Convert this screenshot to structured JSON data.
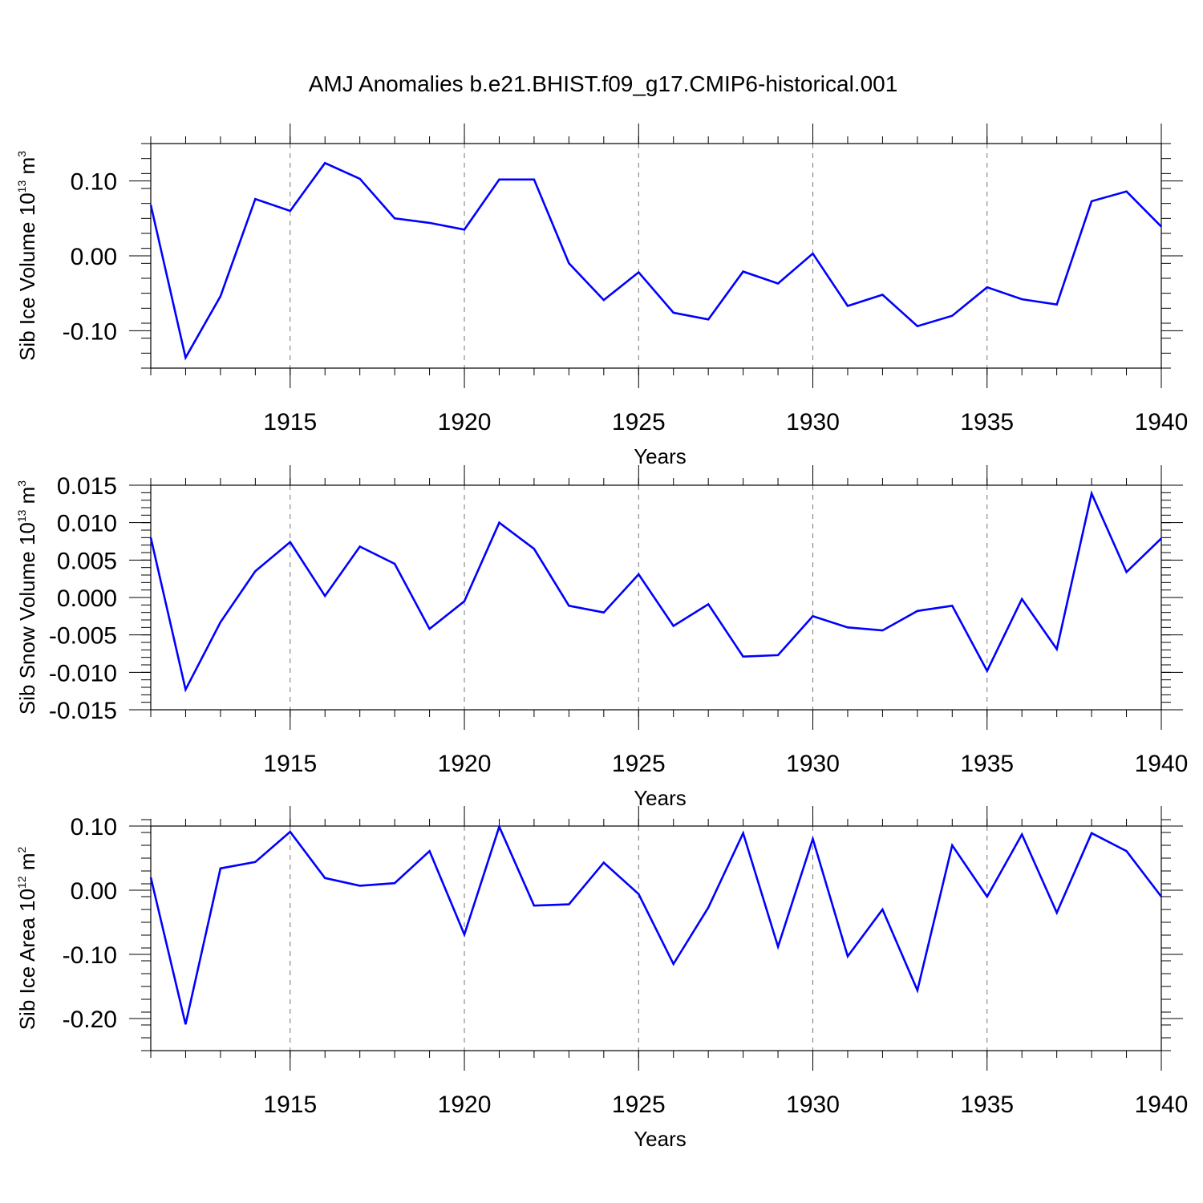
{
  "title": "AMJ Anomalies b.e21.BHIST.f09_g17.CMIP6-historical.001",
  "line_color": "#0000ff",
  "chart_data": [
    {
      "type": "line",
      "ylabel": {
        "prefix": "Sib Ice Volume 10",
        "exp": "13",
        "unit": " m",
        "unit_exp": "3"
      },
      "xlabel": "Years",
      "xlim": [
        1911,
        1940
      ],
      "ylim": [
        -0.15,
        0.15
      ],
      "xticks": [
        1915,
        1920,
        1925,
        1930,
        1935,
        1940
      ],
      "yticks": [
        -0.1,
        0.0,
        0.1
      ],
      "ytick_labels": [
        "-0.10",
        "0.00",
        "0.10"
      ],
      "yminor_step": 0.02,
      "x": [
        1911,
        1912,
        1913,
        1914,
        1915,
        1916,
        1917,
        1918,
        1919,
        1920,
        1921,
        1922,
        1923,
        1924,
        1925,
        1926,
        1927,
        1928,
        1929,
        1930,
        1931,
        1932,
        1933,
        1934,
        1935,
        1936,
        1937,
        1938,
        1939,
        1940
      ],
      "values": [
        0.068,
        -0.136,
        -0.054,
        0.076,
        0.06,
        0.124,
        0.103,
        0.05,
        0.044,
        0.035,
        0.102,
        0.102,
        -0.01,
        -0.059,
        -0.022,
        -0.076,
        -0.085,
        -0.021,
        -0.037,
        0.003,
        -0.067,
        -0.052,
        -0.094,
        -0.08,
        -0.042,
        -0.058,
        -0.065,
        0.073,
        0.086,
        0.039
      ]
    },
    {
      "type": "line",
      "ylabel": {
        "prefix": "Sib Snow Volume 10",
        "exp": "13",
        "unit": " m",
        "unit_exp": "3"
      },
      "xlabel": "Years",
      "xlim": [
        1911,
        1940
      ],
      "ylim": [
        -0.015,
        0.015
      ],
      "xticks": [
        1915,
        1920,
        1925,
        1930,
        1935,
        1940
      ],
      "yticks": [
        -0.015,
        -0.01,
        -0.005,
        0.0,
        0.005,
        0.01,
        0.015
      ],
      "ytick_labels": [
        "-0.015",
        "-0.010",
        "-0.005",
        "0.000",
        "0.005",
        "0.010",
        "0.015"
      ],
      "yminor_step": 0.001,
      "x": [
        1911,
        1912,
        1913,
        1914,
        1915,
        1916,
        1917,
        1918,
        1919,
        1920,
        1921,
        1922,
        1923,
        1924,
        1925,
        1926,
        1927,
        1928,
        1929,
        1930,
        1931,
        1932,
        1933,
        1934,
        1935,
        1936,
        1937,
        1938,
        1939,
        1940
      ],
      "values": [
        0.008,
        -0.0123,
        -0.0033,
        0.0035,
        0.0074,
        0.0002,
        0.0068,
        0.0045,
        -0.0042,
        -0.0005,
        0.01,
        0.0065,
        -0.0011,
        -0.002,
        0.0031,
        -0.0038,
        -0.0009,
        -0.0079,
        -0.0077,
        -0.0025,
        -0.004,
        -0.0044,
        -0.0018,
        -0.0011,
        -0.0098,
        -0.0002,
        -0.0069,
        0.0139,
        0.0034,
        0.0079
      ]
    },
    {
      "type": "line",
      "ylabel": {
        "prefix": "Sib Ice Area 10",
        "exp": "12",
        "unit": " m",
        "unit_exp": "2"
      },
      "xlabel": "Years",
      "xlim": [
        1911,
        1940
      ],
      "ylim": [
        -0.25,
        0.1
      ],
      "xticks": [
        1915,
        1920,
        1925,
        1930,
        1935,
        1940
      ],
      "yticks": [
        -0.2,
        -0.1,
        0.0,
        0.1
      ],
      "ytick_labels": [
        "-0.20",
        "-0.10",
        "0.00",
        "0.10"
      ],
      "yminor_step": 0.02,
      "x": [
        1911,
        1912,
        1913,
        1914,
        1915,
        1916,
        1917,
        1918,
        1919,
        1920,
        1921,
        1922,
        1923,
        1924,
        1925,
        1926,
        1927,
        1928,
        1929,
        1930,
        1931,
        1932,
        1933,
        1934,
        1935,
        1936,
        1937,
        1938,
        1939,
        1940
      ],
      "values": [
        0.02,
        -0.209,
        0.034,
        0.044,
        0.091,
        0.019,
        0.007,
        0.011,
        0.061,
        -0.069,
        0.099,
        -0.024,
        -0.022,
        0.043,
        -0.006,
        -0.115,
        -0.027,
        0.089,
        -0.088,
        0.08,
        -0.103,
        -0.03,
        -0.156,
        0.07,
        -0.01,
        0.087,
        -0.035,
        0.089,
        0.061,
        -0.01
      ]
    }
  ]
}
